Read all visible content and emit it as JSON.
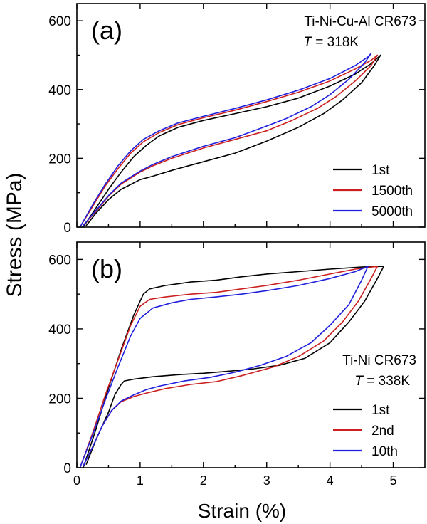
{
  "figure": {
    "ylabel": "Stress (MPa)",
    "xlabel": "Strain (%)"
  },
  "chart_data": [
    {
      "type": "line",
      "panel_label": "(a)",
      "annotation": [
        "Ti-Ni-Cu-Al CR673",
        "T = 318K"
      ],
      "legend": "bottom-right",
      "xlim": [
        0,
        5.5
      ],
      "ylim": [
        0,
        650
      ],
      "xticks": [
        0,
        1,
        2,
        3,
        4,
        5
      ],
      "xtick_labels": [
        "",
        "",
        "",
        "",
        "",
        ""
      ],
      "yticks": [
        0,
        200,
        400,
        600
      ],
      "ytick_labels": [
        "0",
        "200",
        "400",
        "600"
      ],
      "series": [
        {
          "name": "1st",
          "color": "#000000",
          "points": [
            [
              0.1,
              0
            ],
            [
              0.3,
              55
            ],
            [
              0.5,
              110
            ],
            [
              0.7,
              160
            ],
            [
              0.9,
              205
            ],
            [
              1.1,
              238
            ],
            [
              1.3,
              265
            ],
            [
              1.6,
              290
            ],
            [
              2.0,
              310
            ],
            [
              2.5,
              330
            ],
            [
              3.0,
              350
            ],
            [
              3.5,
              375
            ],
            [
              4.0,
              410
            ],
            [
              4.4,
              445
            ],
            [
              4.65,
              475
            ],
            [
              4.8,
              500
            ],
            [
              4.7,
              470
            ],
            [
              4.5,
              420
            ],
            [
              4.2,
              370
            ],
            [
              3.9,
              330
            ],
            [
              3.5,
              290
            ],
            [
              3.0,
              250
            ],
            [
              2.5,
              215
            ],
            [
              2.0,
              190
            ],
            [
              1.5,
              165
            ],
            [
              1.2,
              148
            ],
            [
              1.0,
              138
            ],
            [
              0.7,
              110
            ],
            [
              0.5,
              80
            ],
            [
              0.3,
              40
            ],
            [
              0.15,
              5
            ]
          ]
        },
        {
          "name": "1500th",
          "color": "#cc1f1f",
          "points": [
            [
              0.05,
              0
            ],
            [
              0.25,
              60
            ],
            [
              0.45,
              120
            ],
            [
              0.65,
              170
            ],
            [
              0.85,
              215
            ],
            [
              1.05,
              248
            ],
            [
              1.3,
              275
            ],
            [
              1.6,
              298
            ],
            [
              2.0,
              318
            ],
            [
              2.5,
              340
            ],
            [
              3.0,
              365
            ],
            [
              3.5,
              392
            ],
            [
              4.0,
              425
            ],
            [
              4.4,
              460
            ],
            [
              4.65,
              485
            ],
            [
              4.75,
              500
            ],
            [
              4.65,
              470
            ],
            [
              4.4,
              425
            ],
            [
              4.1,
              380
            ],
            [
              3.8,
              345
            ],
            [
              3.4,
              310
            ],
            [
              3.0,
              280
            ],
            [
              2.5,
              255
            ],
            [
              2.0,
              230
            ],
            [
              1.5,
              200
            ],
            [
              1.2,
              178
            ],
            [
              1.0,
              160
            ],
            [
              0.7,
              125
            ],
            [
              0.5,
              90
            ],
            [
              0.3,
              45
            ],
            [
              0.1,
              5
            ]
          ]
        },
        {
          "name": "5000th",
          "color": "#1f1fdd",
          "points": [
            [
              0.05,
              0
            ],
            [
              0.25,
              65
            ],
            [
              0.45,
              125
            ],
            [
              0.65,
              178
            ],
            [
              0.85,
              222
            ],
            [
              1.05,
              255
            ],
            [
              1.3,
              280
            ],
            [
              1.6,
              303
            ],
            [
              2.0,
              322
            ],
            [
              2.5,
              345
            ],
            [
              3.0,
              370
            ],
            [
              3.5,
              398
            ],
            [
              4.0,
              432
            ],
            [
              4.4,
              470
            ],
            [
              4.6,
              495
            ],
            [
              4.65,
              505
            ],
            [
              4.55,
              478
            ],
            [
              4.3,
              430
            ],
            [
              4.0,
              385
            ],
            [
              3.7,
              350
            ],
            [
              3.3,
              315
            ],
            [
              2.9,
              287
            ],
            [
              2.5,
              260
            ],
            [
              2.0,
              235
            ],
            [
              1.5,
              205
            ],
            [
              1.2,
              182
            ],
            [
              1.0,
              163
            ],
            [
              0.7,
              128
            ],
            [
              0.5,
              92
            ],
            [
              0.3,
              48
            ],
            [
              0.1,
              5
            ]
          ]
        }
      ]
    },
    {
      "type": "line",
      "panel_label": "(b)",
      "annotation": [
        "Ti-Ni CR673",
        "T = 338K"
      ],
      "legend": "bottom-right",
      "xlim": [
        0,
        5.5
      ],
      "ylim": [
        0,
        650
      ],
      "xticks": [
        0,
        1,
        2,
        3,
        4,
        5
      ],
      "xtick_labels": [
        "0",
        "1",
        "2",
        "3",
        "4",
        "5"
      ],
      "yticks": [
        0,
        200,
        400,
        600
      ],
      "ytick_labels": [
        "0",
        "200",
        "400",
        "600"
      ],
      "series": [
        {
          "name": "1st",
          "color": "#000000",
          "points": [
            [
              0.1,
              0
            ],
            [
              0.3,
              110
            ],
            [
              0.5,
              230
            ],
            [
              0.7,
              340
            ],
            [
              0.9,
              440
            ],
            [
              1.05,
              500
            ],
            [
              1.15,
              515
            ],
            [
              1.4,
              525
            ],
            [
              1.8,
              535
            ],
            [
              2.2,
              540
            ],
            [
              2.6,
              550
            ],
            [
              3.0,
              558
            ],
            [
              3.5,
              565
            ],
            [
              4.0,
              572
            ],
            [
              4.5,
              578
            ],
            [
              4.85,
              580
            ],
            [
              4.75,
              545
            ],
            [
              4.55,
              480
            ],
            [
              4.3,
              420
            ],
            [
              4.0,
              360
            ],
            [
              3.6,
              315
            ],
            [
              3.2,
              295
            ],
            [
              2.8,
              285
            ],
            [
              2.4,
              278
            ],
            [
              2.0,
              272
            ],
            [
              1.6,
              268
            ],
            [
              1.2,
              262
            ],
            [
              0.9,
              255
            ],
            [
              0.75,
              250
            ],
            [
              0.7,
              240
            ],
            [
              0.6,
              210
            ],
            [
              0.5,
              160
            ],
            [
              0.3,
              80
            ],
            [
              0.15,
              10
            ]
          ]
        },
        {
          "name": "2nd",
          "color": "#cc1f1f",
          "points": [
            [
              0.05,
              0
            ],
            [
              0.25,
              100
            ],
            [
              0.45,
              210
            ],
            [
              0.65,
              310
            ],
            [
              0.85,
              410
            ],
            [
              1.0,
              465
            ],
            [
              1.15,
              485
            ],
            [
              1.4,
              492
            ],
            [
              1.8,
              500
            ],
            [
              2.2,
              505
            ],
            [
              2.6,
              515
            ],
            [
              3.0,
              525
            ],
            [
              3.5,
              540
            ],
            [
              4.0,
              558
            ],
            [
              4.4,
              572
            ],
            [
              4.75,
              580
            ],
            [
              4.65,
              545
            ],
            [
              4.45,
              480
            ],
            [
              4.2,
              420
            ],
            [
              3.9,
              365
            ],
            [
              3.5,
              320
            ],
            [
              3.1,
              290
            ],
            [
              2.6,
              265
            ],
            [
              2.2,
              248
            ],
            [
              1.8,
              240
            ],
            [
              1.4,
              228
            ],
            [
              1.1,
              215
            ],
            [
              0.9,
              205
            ],
            [
              0.7,
              190
            ],
            [
              0.55,
              165
            ],
            [
              0.4,
              120
            ],
            [
              0.25,
              60
            ],
            [
              0.1,
              5
            ]
          ]
        },
        {
          "name": "10th",
          "color": "#1f1fdd",
          "points": [
            [
              0.05,
              0
            ],
            [
              0.25,
              95
            ],
            [
              0.45,
              195
            ],
            [
              0.65,
              290
            ],
            [
              0.85,
              380
            ],
            [
              1.0,
              430
            ],
            [
              1.2,
              460
            ],
            [
              1.5,
              475
            ],
            [
              1.8,
              485
            ],
            [
              2.2,
              492
            ],
            [
              2.6,
              500
            ],
            [
              3.0,
              510
            ],
            [
              3.5,
              525
            ],
            [
              4.0,
              545
            ],
            [
              4.4,
              565
            ],
            [
              4.6,
              580
            ],
            [
              4.5,
              540
            ],
            [
              4.3,
              470
            ],
            [
              4.0,
              410
            ],
            [
              3.7,
              360
            ],
            [
              3.3,
              320
            ],
            [
              2.9,
              295
            ],
            [
              2.5,
              275
            ],
            [
              2.1,
              260
            ],
            [
              1.7,
              250
            ],
            [
              1.3,
              235
            ],
            [
              1.1,
              225
            ],
            [
              0.9,
              210
            ],
            [
              0.7,
              192
            ],
            [
              0.55,
              165
            ],
            [
              0.4,
              120
            ],
            [
              0.25,
              60
            ],
            [
              0.1,
              5
            ]
          ]
        }
      ]
    }
  ]
}
